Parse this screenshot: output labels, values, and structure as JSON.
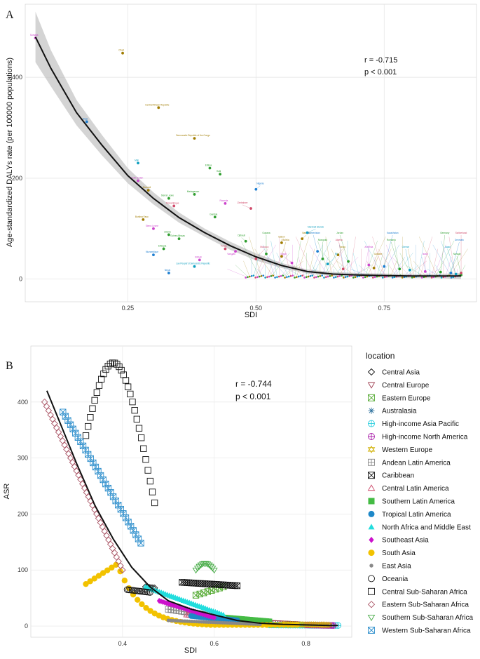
{
  "chart_data": [
    {
      "type": "scatter",
      "panel_label": "A",
      "title": "",
      "xlabel": "SDI",
      "ylabel": "Age-standardized DALYs rate (per 100000 populations)",
      "xlim": [
        0.05,
        0.93
      ],
      "ylim": [
        -45,
        545
      ],
      "x_ticks": [
        0.25,
        0.5,
        0.75
      ],
      "x_tick_labels": [
        "0.25",
        "0.50",
        "0.75"
      ],
      "y_ticks": [
        0,
        200,
        400
      ],
      "y_tick_labels": [
        "0",
        "200",
        "400"
      ],
      "grid": true,
      "stats": {
        "r": "r = -0.715",
        "p": "p  < 0.001"
      },
      "points": [
        {
          "label": "Somalia",
          "x": 0.07,
          "y": 478,
          "color": "#cc44cc"
        },
        {
          "label": "Chad",
          "x": 0.24,
          "y": 448,
          "color": "#a07c00"
        },
        {
          "label": "Niger",
          "x": 0.17,
          "y": 312,
          "color": "#1f7fd1"
        },
        {
          "label": "Central African Republic",
          "x": 0.31,
          "y": 340,
          "color": "#a07c00"
        },
        {
          "label": "Democratic Republic of the Congo",
          "x": 0.38,
          "y": 279,
          "color": "#a07c00"
        },
        {
          "label": "Mali",
          "x": 0.27,
          "y": 230,
          "color": "#0f9fbf"
        },
        {
          "label": "Eritrea",
          "x": 0.41,
          "y": 220,
          "color": "#2e9e2e"
        },
        {
          "label": "Haiti",
          "x": 0.43,
          "y": 208,
          "color": "#2e9e2e"
        },
        {
          "label": "Nigeria",
          "x": 0.5,
          "y": 178,
          "color": "#1f7fd1"
        },
        {
          "label": "Burundi",
          "x": 0.29,
          "y": 176,
          "color": "#a07c00"
        },
        {
          "label": "South Sudan",
          "x": 0.27,
          "y": 195,
          "color": "#cc44cc"
        },
        {
          "label": "Madagascar",
          "x": 0.38,
          "y": 168,
          "color": "#2e9e2e"
        },
        {
          "label": "Sierra Leone",
          "x": 0.33,
          "y": 160,
          "color": "#2e9e2e"
        },
        {
          "label": "Mozambique",
          "x": 0.34,
          "y": 145,
          "color": "#d04a6a"
        },
        {
          "label": "Rwanda",
          "x": 0.44,
          "y": 150,
          "color": "#cc44cc"
        },
        {
          "label": "Zimbabwe",
          "x": 0.49,
          "y": 140,
          "color": "#d04a6a"
        },
        {
          "label": "Burkina Faso",
          "x": 0.28,
          "y": 118,
          "color": "#a07c00"
        },
        {
          "label": "Gambia",
          "x": 0.42,
          "y": 123,
          "color": "#2e9e2e"
        },
        {
          "label": "Sierra Leone",
          "x": 0.3,
          "y": 100,
          "color": "#cc44cc"
        },
        {
          "label": "Liberia",
          "x": 0.33,
          "y": 88,
          "color": "#2e9e2e"
        },
        {
          "label": "Guinea-Bissau",
          "x": 0.35,
          "y": 80,
          "color": "#2e9e2e"
        },
        {
          "label": "Ethiopia",
          "x": 0.32,
          "y": 60,
          "color": "#2e9e2e"
        },
        {
          "label": "Mozambique",
          "x": 0.3,
          "y": 48,
          "color": "#1f7fd1"
        },
        {
          "label": "Lao People's Democratic Republic",
          "x": 0.38,
          "y": 25,
          "color": "#0f9fbf"
        },
        {
          "label": "Nepal",
          "x": 0.33,
          "y": 12,
          "color": "#1f7fd1"
        },
        {
          "label": "Kiribati",
          "x": 0.39,
          "y": 38,
          "color": "#cc44cc"
        },
        {
          "label": "Djibouti",
          "x": 0.48,
          "y": 75,
          "color": "#2e9e2e"
        },
        {
          "label": "Gabon",
          "x": 0.55,
          "y": 72,
          "color": "#a07c00"
        },
        {
          "label": "Namibia",
          "x": 0.59,
          "y": 80,
          "color": "#a07c00"
        },
        {
          "label": "Marshall Islands",
          "x": 0.6,
          "y": 92,
          "color": "#0f9fbf"
        },
        {
          "label": "Tuvalu",
          "x": 0.44,
          "y": 60,
          "color": "#d04a6a"
        },
        {
          "label": "Vanuatu",
          "x": 0.46,
          "y": 55,
          "color": "#cc44cc"
        },
        {
          "label": "Guyana",
          "x": 0.52,
          "y": 50,
          "color": "#2e9e2e"
        },
        {
          "label": "Bolivia",
          "x": 0.55,
          "y": 45,
          "color": "#a07c00"
        },
        {
          "label": "Morocco",
          "x": 0.5,
          "y": 40,
          "color": "#d04a6a"
        },
        {
          "label": "Egypt",
          "x": 0.57,
          "y": 32,
          "color": "#cc44cc"
        },
        {
          "label": "Turkmenistan",
          "x": 0.62,
          "y": 55,
          "color": "#1f7fd1"
        },
        {
          "label": "Mongolia",
          "x": 0.63,
          "y": 40,
          "color": "#2e9e2e"
        },
        {
          "label": "Tonga",
          "x": 0.66,
          "y": 48,
          "color": "#a07c00"
        },
        {
          "label": "Fiji",
          "x": 0.64,
          "y": 30,
          "color": "#0f9fbf"
        },
        {
          "label": "Jordan",
          "x": 0.68,
          "y": 35,
          "color": "#2e9e2e"
        },
        {
          "label": "Algeria",
          "x": 0.67,
          "y": 20,
          "color": "#d04a6a"
        },
        {
          "label": "Armenia",
          "x": 0.72,
          "y": 28,
          "color": "#cc44cc"
        },
        {
          "label": "Ukraine",
          "x": 0.73,
          "y": 22,
          "color": "#a07c00"
        },
        {
          "label": "Kazakhstan",
          "x": 0.75,
          "y": 25,
          "color": "#1f7fd1"
        },
        {
          "label": "Romania",
          "x": 0.78,
          "y": 20,
          "color": "#2e9e2e"
        },
        {
          "label": "Greece",
          "x": 0.8,
          "y": 18,
          "color": "#0f9fbf"
        },
        {
          "label": "Israel",
          "x": 0.83,
          "y": 15,
          "color": "#cc44cc"
        },
        {
          "label": "Germany",
          "x": 0.86,
          "y": 14,
          "color": "#2e9e2e"
        },
        {
          "label": "Denmark",
          "x": 0.88,
          "y": 12,
          "color": "#1f7fd1"
        },
        {
          "label": "Japan",
          "x": 0.89,
          "y": 10,
          "color": "#0f9fbf"
        },
        {
          "label": "Norway",
          "x": 0.9,
          "y": 8,
          "color": "#2e9e2e"
        },
        {
          "label": "Switzerland",
          "x": 0.9,
          "y": 12,
          "color": "#d04a6a"
        }
      ],
      "fit_line": {
        "x": [
          0.07,
          0.1,
          0.15,
          0.2,
          0.25,
          0.3,
          0.35,
          0.4,
          0.45,
          0.5,
          0.55,
          0.6,
          0.65,
          0.7,
          0.75,
          0.8,
          0.85,
          0.9
        ],
        "y": [
          480,
          418,
          330,
          265,
          205,
          160,
          122,
          92,
          66,
          44,
          27,
          15,
          10,
          8,
          7,
          6,
          6,
          6
        ],
        "lower": [
          430,
          382,
          305,
          245,
          190,
          148,
          112,
          84,
          58,
          37,
          22,
          11,
          6,
          4,
          3,
          2,
          2,
          0
        ],
        "upper": [
          530,
          454,
          355,
          285,
          220,
          172,
          132,
          100,
          74,
          51,
          32,
          19,
          14,
          12,
          11,
          10,
          10,
          12
        ]
      }
    },
    {
      "type": "scatter",
      "panel_label": "B",
      "title": "",
      "xlabel": "SDI",
      "ylabel": "ASR",
      "xlim": [
        0.2,
        0.9
      ],
      "ylim": [
        -20,
        500
      ],
      "x_ticks": [
        0.4,
        0.6,
        0.8
      ],
      "x_tick_labels": [
        "0.4",
        "0.6",
        "0.8"
      ],
      "y_ticks": [
        0,
        100,
        200,
        300,
        400
      ],
      "y_tick_labels": [
        "0",
        "100",
        "200",
        "300",
        "400"
      ],
      "grid": true,
      "stats": {
        "r": "r = -0.744",
        "p": "p  < 0.001"
      },
      "legend_title": "location",
      "legend_position": "right",
      "fit_line": {
        "x": [
          0.235,
          0.26,
          0.3,
          0.34,
          0.38,
          0.42,
          0.46,
          0.5,
          0.55,
          0.6,
          0.65,
          0.7,
          0.75,
          0.8,
          0.85,
          0.87
        ],
        "y": [
          420,
          370,
          290,
          215,
          155,
          105,
          70,
          45,
          30,
          20,
          10,
          5,
          3,
          2,
          1,
          1
        ]
      },
      "series": [
        {
          "name": "Central Asia",
          "marker": "diamond",
          "color": "#111111",
          "x_range": [
            0.45,
            0.47
          ],
          "y_range": [
            70,
            68
          ],
          "n": 6
        },
        {
          "name": "Central Europe",
          "marker": "tri-down",
          "color": "#9c3b4e",
          "x_range": [
            0.63,
            0.78
          ],
          "y_range": [
            10,
            4
          ],
          "n": 30
        },
        {
          "name": "Eastern Europe",
          "marker": "square-x",
          "color": "#55aa33",
          "x_range": [
            0.56,
            0.62
          ],
          "y_range": [
            55,
            70
          ],
          "n": 8
        },
        {
          "name": "Australasia",
          "marker": "asterisk",
          "color": "#2a6f9c",
          "x_range": [
            0.75,
            0.82
          ],
          "y_range": [
            3,
            2
          ],
          "n": 20
        },
        {
          "name": "High-income Asia Pacific",
          "marker": "circle-plus",
          "color": "#22ccdd",
          "x_range": [
            0.72,
            0.87
          ],
          "y_range": [
            2,
            1
          ],
          "n": 30
        },
        {
          "name": "High-income North America",
          "marker": "circle-plus",
          "color": "#aa22aa",
          "x_range": [
            0.8,
            0.86
          ],
          "y_range": [
            2,
            1
          ],
          "n": 20
        },
        {
          "name": "Western Europe",
          "marker": "star",
          "color": "#d1b20a",
          "x_range": [
            0.75,
            0.85
          ],
          "y_range": [
            3,
            2
          ],
          "n": 25
        },
        {
          "name": "Andean Latin America",
          "marker": "square-plus",
          "color": "#888888",
          "x_range": [
            0.5,
            0.58
          ],
          "y_range": [
            30,
            20
          ],
          "n": 15
        },
        {
          "name": "Caribbean",
          "marker": "square-x",
          "color": "#111111",
          "x_range": [
            0.53,
            0.65
          ],
          "y_range": [
            78,
            72
          ],
          "n": 25
        },
        {
          "name": "Central Latin America",
          "marker": "tri-up",
          "color": "#cc4466",
          "x_range": [
            0.54,
            0.63
          ],
          "y_range": [
            20,
            10
          ],
          "n": 20
        },
        {
          "name": "Southern Latin America",
          "marker": "filled-square",
          "color": "#44bb44",
          "x_range": [
            0.62,
            0.72
          ],
          "y_range": [
            15,
            8
          ],
          "n": 30
        },
        {
          "name": "Tropical Latin America",
          "marker": "filled-circle",
          "color": "#1e88c8",
          "x_range": [
            0.55,
            0.65
          ],
          "y_range": [
            18,
            10
          ],
          "n": 25
        },
        {
          "name": "North Africa and Middle East",
          "marker": "filled-tri",
          "color": "#22dddd",
          "x_range": [
            0.45,
            0.62
          ],
          "y_range": [
            70,
            20
          ],
          "n": 40
        },
        {
          "name": "Southeast Asia",
          "marker": "filled-diamond",
          "color": "#cc11cc",
          "x_range": [
            0.48,
            0.6
          ],
          "y_range": [
            45,
            15
          ],
          "n": 30
        },
        {
          "name": "South Asia",
          "marker": "filled-circle",
          "color": "#f2c200",
          "x_range": [
            0.32,
            0.78
          ],
          "y_range": [
            75,
            2
          ],
          "n": 50
        },
        {
          "name": "East Asia",
          "marker": "small-dot",
          "color": "#888888",
          "x_range": [
            0.5,
            0.7
          ],
          "y_range": [
            10,
            3
          ],
          "n": 40
        },
        {
          "name": "Oceania",
          "marker": "open-circle",
          "color": "#111111",
          "x_range": [
            0.41,
            0.46
          ],
          "y_range": [
            65,
            60
          ],
          "n": 15
        },
        {
          "name": "Central Sub-Saharan Africa",
          "marker": "open-square",
          "color": "#111111",
          "x_range": [
            0.32,
            0.47
          ],
          "y_range": [
            340,
            215
          ],
          "n": 32
        },
        {
          "name": "Eastern Sub-Saharan Africa",
          "marker": "open-diamond",
          "color": "#aa5566",
          "x_range": [
            0.23,
            0.4
          ],
          "y_range": [
            400,
            100
          ],
          "n": 40
        },
        {
          "name": "Southern Sub-Saharan Africa",
          "marker": "open-tri-down",
          "color": "#44aa44",
          "x_range": [
            0.56,
            0.6
          ],
          "y_range": [
            112,
            100
          ],
          "n": 12
        },
        {
          "name": "Western Sub-Saharan Africa",
          "marker": "square-x-blue",
          "color": "#2f8fcc",
          "x_range": [
            0.27,
            0.44
          ],
          "y_range": [
            382,
            148
          ],
          "n": 32
        }
      ]
    }
  ]
}
